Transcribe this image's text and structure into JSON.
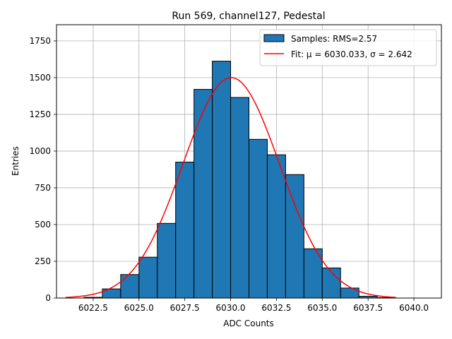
{
  "chart_data": {
    "type": "bar",
    "title": "Run 569, channel127, Pedestal",
    "xlabel": "ADC Counts",
    "ylabel": "Entries",
    "xlim": [
      6020.5,
      6041.5
    ],
    "ylim": [
      0,
      1860
    ],
    "grid": true,
    "legend_placement": "top-right",
    "x_ticks": [
      6022.5,
      6025.0,
      6027.5,
      6030.0,
      6032.5,
      6035.0,
      6037.5,
      6040.0
    ],
    "x_tick_labels": [
      "6022.5",
      "6025.0",
      "6027.5",
      "6030.0",
      "6032.5",
      "6035.0",
      "6037.5",
      "6040.0"
    ],
    "y_ticks": [
      0,
      250,
      500,
      750,
      1000,
      1250,
      1500,
      1750
    ],
    "y_tick_labels": [
      "0",
      "250",
      "500",
      "750",
      "1000",
      "1250",
      "1500",
      "1750"
    ],
    "bins": {
      "edges": [
        6022,
        6023,
        6024,
        6025,
        6026,
        6027,
        6028,
        6029,
        6030,
        6031,
        6032,
        6033,
        6034,
        6035,
        6036,
        6037,
        6038,
        6039
      ],
      "counts": [
        5,
        62,
        160,
        278,
        508,
        925,
        1420,
        1612,
        1365,
        1080,
        975,
        840,
        335,
        205,
        68,
        12,
        3
      ]
    },
    "series": [
      {
        "kind": "histogram",
        "name": "Samples: RMS=2.57",
        "color": "#1f77b4",
        "edge_color": "#000000"
      },
      {
        "kind": "gaussian-fit",
        "name": "Fit: μ = 6030.033, σ = 2.642",
        "color": "#ff0000",
        "mu": 6030.033,
        "sigma": 2.642,
        "amplitude": 1500,
        "x_range": [
          6021,
          6039
        ]
      }
    ]
  }
}
